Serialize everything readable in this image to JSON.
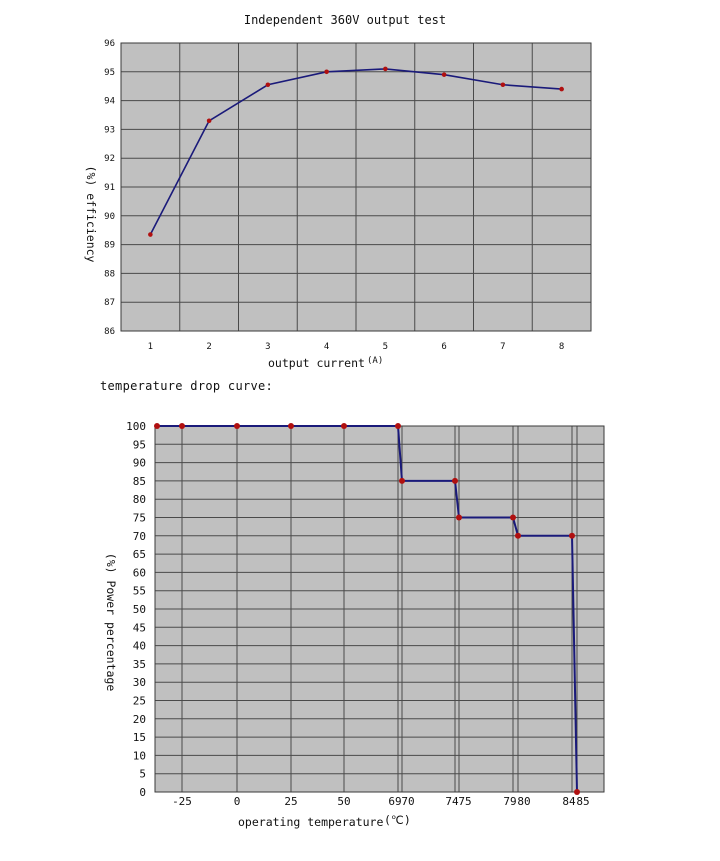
{
  "caption": "temperature drop curve:",
  "chart_data": [
    {
      "type": "line",
      "title": "Independent 360V output test",
      "xlabel": "output current",
      "xunit": "(A)",
      "ylabel": "(%) efficiency",
      "categories": [
        "1",
        "2",
        "3",
        "4",
        "5",
        "6",
        "7",
        "8"
      ],
      "x": [
        1,
        2,
        3,
        4,
        5,
        6,
        7,
        8
      ],
      "series": [
        {
          "values": [
            89.35,
            93.3,
            94.55,
            95.0,
            95.1,
            94.9,
            94.55,
            94.4
          ]
        }
      ],
      "ylim": [
        86,
        96
      ],
      "yticks": [
        86,
        87,
        88,
        89,
        90,
        91,
        92,
        93,
        94,
        95,
        96
      ],
      "grid": true,
      "colors": {
        "plot_bg": "#c0c0c0",
        "line": "#1a1a7a",
        "marker": "#b01010",
        "grid": "#4a4a4a"
      }
    },
    {
      "type": "line",
      "title": "",
      "xlabel": "operating temperature",
      "xunit": "(℃)",
      "ylabel": "(%) Power percentage",
      "x_tick_labels": [
        "-25",
        "0",
        "25",
        "50",
        "69",
        "70",
        "74",
        "75",
        "79",
        "80",
        "84",
        "85"
      ],
      "x_tick_values": [
        -25,
        0,
        25,
        50,
        69,
        70,
        74,
        75,
        79,
        80,
        84,
        85
      ],
      "series": [
        {
          "x": [
            -37,
            -25,
            0,
            25,
            50,
            69,
            70,
            74,
            75,
            79,
            80,
            84,
            85
          ],
          "values": [
            100,
            100,
            100,
            100,
            100,
            100,
            85,
            85,
            75,
            75,
            70,
            70,
            0
          ]
        }
      ],
      "ylim": [
        0,
        100
      ],
      "yticks": [
        0,
        5,
        10,
        15,
        20,
        25,
        30,
        35,
        40,
        45,
        50,
        55,
        60,
        65,
        70,
        75,
        80,
        85,
        90,
        95,
        100
      ],
      "grid": true,
      "colors": {
        "plot_bg": "#c0c0c0",
        "line": "#1a1a7a",
        "marker": "#b01010",
        "grid": "#4a4a4a"
      }
    }
  ]
}
